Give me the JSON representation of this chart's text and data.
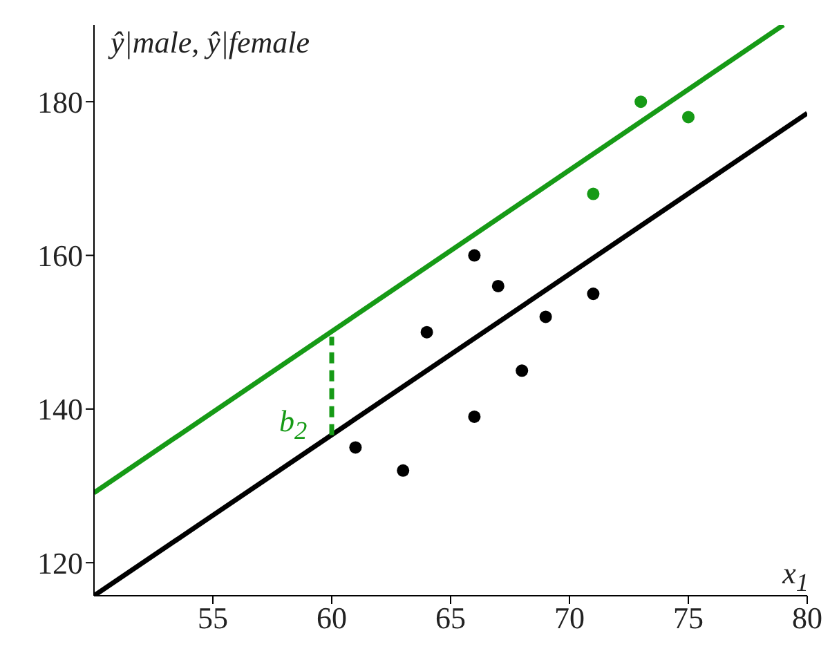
{
  "chart_data": {
    "type": "scatter",
    "xlabel": "x$_{1}$",
    "ylabel": "ŷ|male, ŷ|female",
    "xlim": [
      50,
      80
    ],
    "ylim": [
      115.7,
      190
    ],
    "xticks": [
      55,
      60,
      65,
      70,
      75,
      80
    ],
    "yticks": [
      120,
      140,
      160,
      180
    ],
    "grid": false,
    "marker": "circle",
    "series": [
      {
        "type": "line",
        "color": "#169a16",
        "x": [
          50,
          79
        ],
        "values": [
          129.1,
          190
        ],
        "line_style": "solid",
        "marker": "none"
      },
      {
        "type": "line",
        "color": "#000000",
        "x": [
          50,
          80
        ],
        "values": [
          115.7,
          178.5
        ],
        "line_style": "solid",
        "marker": "none"
      },
      {
        "type": "line",
        "color": "#169a16",
        "x": [
          60,
          60
        ],
        "values": [
          136.6,
          149.4
        ],
        "line_style": "dashed",
        "marker": "none"
      },
      {
        "color": "#000000",
        "x": [
          61,
          63,
          64,
          66,
          66,
          67,
          68,
          69,
          71
        ],
        "values": [
          135,
          132,
          150,
          160,
          139,
          156,
          145,
          152,
          155
        ]
      },
      {
        "color": "#169a16",
        "x": [
          71,
          73,
          75
        ],
        "values": [
          168,
          180,
          178
        ]
      }
    ],
    "annotations": [
      "b$_{2}$"
    ]
  }
}
